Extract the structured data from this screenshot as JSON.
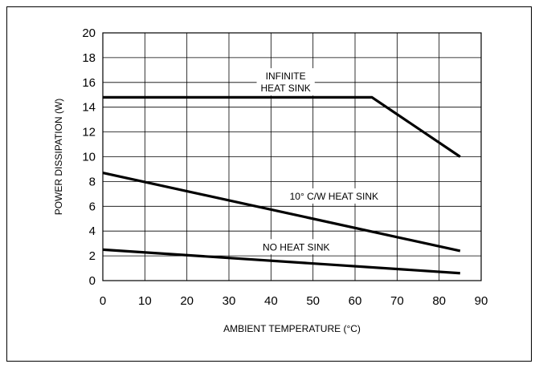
{
  "chart_data": {
    "type": "line",
    "xlabel": "AMBIENT TEMPERATURE (°C)",
    "ylabel": "POWER DISSIPATION (W)",
    "xlim": [
      0,
      90
    ],
    "ylim": [
      0,
      20
    ],
    "x_ticks": [
      0,
      10,
      20,
      30,
      40,
      50,
      60,
      70,
      80,
      90
    ],
    "y_ticks": [
      0,
      2,
      4,
      6,
      8,
      10,
      12,
      14,
      16,
      18,
      20
    ],
    "grid": true,
    "series": [
      {
        "name": "INFINITE HEAT SINK",
        "x": [
          0,
          64,
          85
        ],
        "y": [
          14.8,
          14.8,
          10
        ]
      },
      {
        "name": "10° C/W HEAT SINK",
        "x": [
          0,
          85
        ],
        "y": [
          8.7,
          2.4
        ]
      },
      {
        "name": "NO HEAT SINK",
        "x": [
          0,
          85
        ],
        "y": [
          2.5,
          0.6
        ]
      }
    ],
    "annotations": [
      {
        "lines": [
          "INFINITE",
          "HEAT SINK"
        ],
        "x": 43.5,
        "y": 16.5
      },
      {
        "lines": [
          "10° C/W HEAT SINK"
        ],
        "x": 55,
        "y": 6.8
      },
      {
        "lines": [
          "NO HEAT SINK"
        ],
        "x": 46,
        "y": 2.7
      }
    ]
  }
}
